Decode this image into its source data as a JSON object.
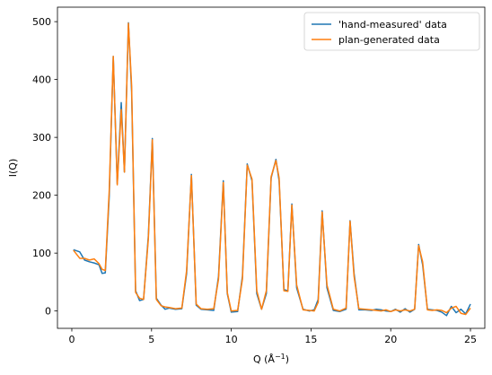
{
  "chart_data": {
    "type": "line",
    "xlabel": "Q (Å",
    "xlabel_sup": "−1",
    "xlabel_close": ")",
    "ylabel": "I(Q)",
    "xlim": [
      -0.9,
      25.9
    ],
    "ylim": [
      -30,
      525
    ],
    "xticks": [
      0,
      5,
      10,
      15,
      20,
      25
    ],
    "yticks": [
      0,
      100,
      200,
      300,
      400,
      500
    ],
    "grid": false,
    "legend_position": "top-right",
    "series": [
      {
        "name": "'hand-measured' data",
        "color": "#1f77b4",
        "x": [
          0.1,
          0.5,
          0.8,
          1.1,
          1.4,
          1.7,
          1.9,
          2.1,
          2.35,
          2.6,
          2.85,
          3.1,
          3.3,
          3.55,
          3.75,
          4.0,
          4.25,
          4.5,
          4.8,
          5.05,
          5.3,
          5.6,
          5.85,
          6.1,
          6.5,
          6.9,
          7.2,
          7.5,
          7.8,
          8.1,
          8.5,
          8.9,
          9.2,
          9.5,
          9.75,
          10.0,
          10.4,
          10.7,
          11.0,
          11.3,
          11.6,
          11.9,
          12.2,
          12.5,
          12.8,
          13.0,
          13.3,
          13.55,
          13.8,
          14.1,
          14.5,
          14.9,
          15.2,
          15.45,
          15.7,
          16.0,
          16.4,
          16.8,
          17.2,
          17.45,
          17.7,
          18.0,
          18.4,
          18.8,
          19.1,
          19.4,
          19.7,
          20.0,
          20.3,
          20.6,
          20.9,
          21.2,
          21.5,
          21.75,
          22.0,
          22.3,
          22.6,
          22.9,
          23.2,
          23.5,
          23.8,
          24.1,
          24.4,
          24.7,
          25.0
        ],
        "y": [
          106,
          102,
          88,
          85,
          83,
          80,
          65,
          66,
          200,
          440,
          220,
          360,
          240,
          498,
          380,
          35,
          18,
          20,
          130,
          298,
          22,
          10,
          3,
          5,
          3,
          4,
          65,
          236,
          10,
          3,
          2,
          1,
          60,
          225,
          30,
          -2,
          -1,
          60,
          254,
          225,
          30,
          3,
          30,
          230,
          262,
          225,
          37,
          35,
          185,
          40,
          3,
          0,
          2,
          20,
          173,
          40,
          1,
          -1,
          3,
          156,
          65,
          2,
          2,
          1,
          3,
          2,
          0,
          -1,
          3,
          -2,
          4,
          -2,
          3,
          115,
          80,
          3,
          2,
          1,
          -2,
          -8,
          8,
          -3,
          3,
          -5,
          12
        ]
      },
      {
        "name": "plan-generated data",
        "color": "#ff7f0e",
        "x": [
          0.1,
          0.5,
          0.8,
          1.1,
          1.4,
          1.7,
          1.9,
          2.1,
          2.35,
          2.6,
          2.85,
          3.1,
          3.3,
          3.55,
          3.75,
          4.0,
          4.25,
          4.5,
          4.8,
          5.05,
          5.3,
          5.6,
          5.85,
          6.1,
          6.5,
          6.9,
          7.2,
          7.5,
          7.8,
          8.1,
          8.5,
          8.9,
          9.2,
          9.5,
          9.75,
          10.0,
          10.4,
          10.7,
          11.0,
          11.3,
          11.6,
          11.9,
          12.2,
          12.5,
          12.8,
          13.0,
          13.3,
          13.55,
          13.8,
          14.1,
          14.5,
          14.9,
          15.2,
          15.45,
          15.7,
          16.0,
          16.4,
          16.8,
          17.2,
          17.45,
          17.7,
          18.0,
          18.4,
          18.8,
          19.1,
          19.4,
          19.7,
          20.0,
          20.3,
          20.6,
          20.9,
          21.2,
          21.5,
          21.75,
          22.0,
          22.3,
          22.6,
          22.9,
          23.2,
          23.5,
          23.8,
          24.1,
          24.4,
          24.7,
          25.0
        ],
        "y": [
          105,
          91,
          91,
          88,
          90,
          82,
          72,
          70,
          210,
          440,
          218,
          348,
          240,
          497,
          390,
          32,
          22,
          20,
          125,
          296,
          20,
          9,
          7,
          6,
          4,
          5,
          70,
          234,
          12,
          4,
          3,
          4,
          55,
          222,
          32,
          0,
          1,
          55,
          252,
          228,
          35,
          3,
          35,
          232,
          260,
          230,
          35,
          34,
          183,
          45,
          2,
          1,
          0,
          15,
          171,
          45,
          3,
          0,
          5,
          155,
          60,
          4,
          3,
          2,
          1,
          0,
          2,
          -1,
          2,
          0,
          2,
          0,
          3,
          113,
          85,
          2,
          1,
          2,
          1,
          -3,
          5,
          8,
          -4,
          -6,
          5
        ]
      }
    ]
  }
}
